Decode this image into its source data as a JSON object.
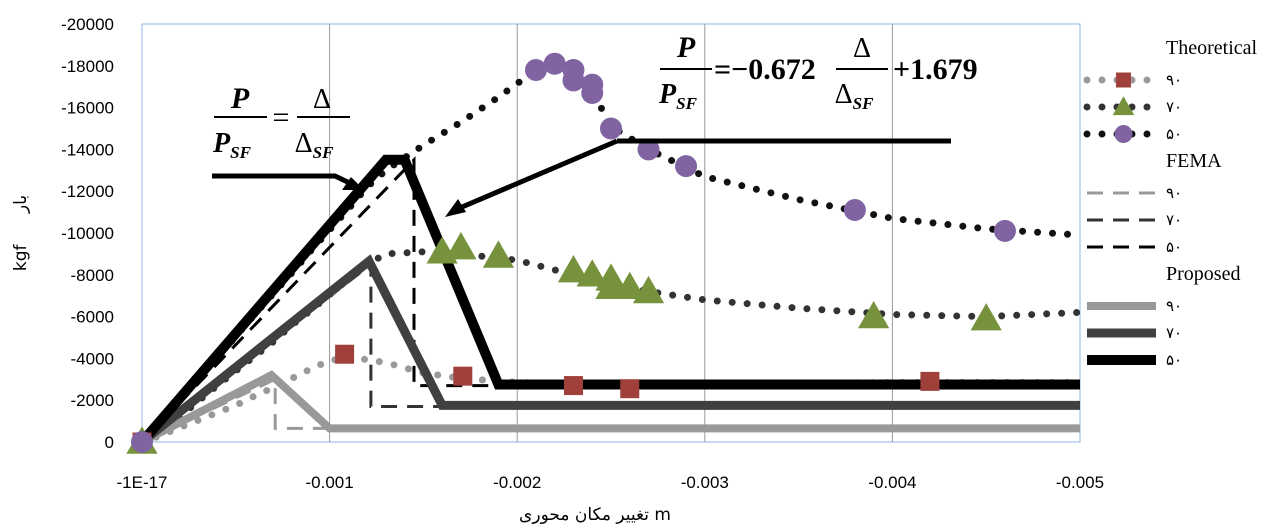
{
  "chart_data": {
    "type": "line",
    "xlabel": "تغییر مکان محوری  m",
    "ylabel": "بار  kgf",
    "ylabel_unit": "kgf",
    "ylabel_word": "بار",
    "xlim": [
      0,
      -0.005
    ],
    "ylim": [
      0,
      -20000
    ],
    "x_ticks": [
      "-1E-17",
      "-0.001",
      "-0.002",
      "-0.003",
      "-0.004",
      "-0.005"
    ],
    "y_ticks": [
      "0",
      "-2000",
      "-4000",
      "-6000",
      "-8000",
      "-10000",
      "-12000",
      "-14000",
      "-16000",
      "-18000",
      "-20000"
    ],
    "grid": "vertical",
    "legend": {
      "groups": [
        {
          "title": "Theoretical",
          "entries": [
            "۹۰",
            "۷۰",
            "۵۰"
          ]
        },
        {
          "title": "FEMA",
          "entries": [
            "۹۰",
            "۷۰",
            "۵۰"
          ]
        },
        {
          "title": "Proposed",
          "entries": [
            "۹۰",
            "۷۰",
            "۵۰"
          ]
        }
      ]
    },
    "equations": {
      "left": {
        "lhs_num": "P",
        "lhs_den_main": "P",
        "lhs_den_sub": "SF",
        "eq": "=",
        "rhs_num": "Δ",
        "rhs_den_main": "Δ",
        "rhs_den_sub": "SF"
      },
      "right": {
        "lhs_num": "P",
        "lhs_den_main": "P",
        "lhs_den_sub": "SF",
        "coef": "=−0.672",
        "rhs_num": "Δ",
        "rhs_den_main": "Δ",
        "rhs_den_sub": "SF",
        "const": "+1.679"
      }
    },
    "series": [
      {
        "name": "۹۰",
        "group": "Theoretical",
        "style": "dotted-square",
        "color": "#999999",
        "marker_color": "#a0403a",
        "points": [
          [
            0,
            0
          ],
          [
            -5e-05,
            -150
          ],
          [
            -0.0001,
            -310
          ],
          [
            -0.0002,
            -690
          ],
          [
            -0.0003,
            -1040
          ],
          [
            -0.0004,
            -1400
          ],
          [
            -0.0005,
            -1750
          ],
          [
            -0.0006,
            -2200
          ],
          [
            -0.0007,
            -2600
          ],
          [
            -0.0008,
            -3050
          ],
          [
            -0.0009,
            -3500
          ],
          [
            -0.001,
            -3900
          ],
          [
            -0.00112,
            -4050
          ],
          [
            -0.0013,
            -3800
          ],
          [
            -0.0015,
            -3300
          ],
          [
            -0.0017,
            -3050
          ],
          [
            -0.002,
            -2850
          ],
          [
            -0.0025,
            -2750
          ],
          [
            -0.003,
            -2750
          ],
          [
            -0.0035,
            -2800
          ],
          [
            -0.004,
            -2850
          ],
          [
            -0.0045,
            -2850
          ],
          [
            -0.005,
            -2850
          ]
        ],
        "markers": [
          [
            0,
            0
          ],
          [
            -0.00108,
            -4200
          ],
          [
            -0.00171,
            -3150
          ],
          [
            -0.0023,
            -2700
          ],
          [
            -0.0026,
            -2550
          ],
          [
            -0.0042,
            -2900
          ]
        ]
      },
      {
        "name": "۷۰",
        "group": "Theoretical",
        "style": "dotted-triangle",
        "color": "#333333",
        "marker_color": "#76923c",
        "points": [
          [
            0,
            0
          ],
          [
            -0.0001,
            -450
          ],
          [
            -0.0002,
            -1200
          ],
          [
            -0.0003,
            -1950
          ],
          [
            -0.0004,
            -2700
          ],
          [
            -0.0005,
            -3400
          ],
          [
            -0.0006,
            -4100
          ],
          [
            -0.0007,
            -4800
          ],
          [
            -0.0008,
            -5600
          ],
          [
            -0.0009,
            -6300
          ],
          [
            -0.001,
            -7050
          ],
          [
            -0.0011,
            -7800
          ],
          [
            -0.0012,
            -8500
          ],
          [
            -0.0013,
            -9000
          ],
          [
            -0.0015,
            -9100
          ],
          [
            -0.0017,
            -9000
          ],
          [
            -0.002,
            -8700
          ],
          [
            -0.0023,
            -8000
          ],
          [
            -0.0027,
            -7200
          ],
          [
            -0.003,
            -6800
          ],
          [
            -0.0035,
            -6400
          ],
          [
            -0.004,
            -6100
          ],
          [
            -0.0045,
            -6000
          ],
          [
            -0.005,
            -6200
          ]
        ],
        "markers": [
          [
            0,
            0
          ],
          [
            -0.0016,
            -9100
          ],
          [
            -0.0017,
            -9300
          ],
          [
            -0.0019,
            -8900
          ],
          [
            -0.0023,
            -8200
          ],
          [
            -0.0024,
            -8000
          ],
          [
            -0.0025,
            -7800
          ],
          [
            -0.0025,
            -7400
          ],
          [
            -0.0026,
            -7400
          ],
          [
            -0.0027,
            -7200
          ],
          [
            -0.0039,
            -6000
          ],
          [
            -0.0045,
            -5900
          ]
        ]
      },
      {
        "name": "۵۰",
        "group": "Theoretical",
        "style": "dotted-circle",
        "color": "#111111",
        "marker_color": "#8064a2",
        "points": [
          [
            0,
            0
          ],
          [
            -0.0001,
            -1000
          ],
          [
            -0.0002,
            -2050
          ],
          [
            -0.0003,
            -3000
          ],
          [
            -0.0004,
            -4050
          ],
          [
            -0.0005,
            -5050
          ],
          [
            -0.0006,
            -6100
          ],
          [
            -0.0007,
            -7100
          ],
          [
            -0.0008,
            -8100
          ],
          [
            -0.0009,
            -9150
          ],
          [
            -0.001,
            -10150
          ],
          [
            -0.0011,
            -11150
          ],
          [
            -0.0012,
            -12200
          ],
          [
            -0.0013,
            -13000
          ],
          [
            -0.0015,
            -14200
          ],
          [
            -0.0017,
            -15300
          ],
          [
            -0.0019,
            -16500
          ],
          [
            -0.0021,
            -17800
          ],
          [
            -0.0022,
            -18000
          ],
          [
            -0.0024,
            -16800
          ],
          [
            -0.0025,
            -15100
          ],
          [
            -0.0027,
            -14000
          ],
          [
            -0.003,
            -12700
          ],
          [
            -0.0035,
            -11600
          ],
          [
            -0.004,
            -10700
          ],
          [
            -0.0045,
            -10200
          ],
          [
            -0.005,
            -9900
          ]
        ],
        "markers": [
          [
            0,
            0
          ],
          [
            -0.0021,
            -17800
          ],
          [
            -0.0022,
            -18100
          ],
          [
            -0.0023,
            -17800
          ],
          [
            -0.0023,
            -17300
          ],
          [
            -0.0024,
            -17100
          ],
          [
            -0.0024,
            -16700
          ],
          [
            -0.0025,
            -15000
          ],
          [
            -0.0027,
            -14000
          ],
          [
            -0.0029,
            -13200
          ],
          [
            -0.0038,
            -11100
          ],
          [
            -0.0046,
            -10100
          ]
        ]
      },
      {
        "name": "۹۰",
        "group": "FEMA",
        "style": "dashed",
        "color": "#999999",
        "points": [
          [
            0,
            0
          ],
          [
            -0.00071,
            -3000
          ],
          [
            -0.00071,
            -650
          ],
          [
            -0.005,
            -650
          ]
        ]
      },
      {
        "name": "۷۰",
        "group": "FEMA",
        "style": "dashed",
        "color": "#333333",
        "points": [
          [
            0,
            0
          ],
          [
            -0.00122,
            -8500
          ],
          [
            -0.00122,
            -1700
          ],
          [
            -0.005,
            -1700
          ]
        ]
      },
      {
        "name": "۵۰",
        "group": "FEMA",
        "style": "dashed",
        "color": "#000000",
        "points": [
          [
            0,
            0
          ],
          [
            -0.00145,
            -13500
          ],
          [
            -0.00145,
            -2700
          ],
          [
            -0.005,
            -2700
          ]
        ]
      },
      {
        "name": "۹۰",
        "group": "Proposed",
        "style": "solid",
        "color": "#999999",
        "points": [
          [
            0,
            0
          ],
          [
            -0.00069,
            -3200
          ],
          [
            -0.001,
            -650
          ],
          [
            -0.005,
            -650
          ]
        ]
      },
      {
        "name": "۷۰",
        "group": "Proposed",
        "style": "solid",
        "color": "#404040",
        "points": [
          [
            0,
            0
          ],
          [
            -0.00121,
            -8650
          ],
          [
            -0.0016,
            -1750
          ],
          [
            -0.005,
            -1750
          ]
        ]
      },
      {
        "name": "۵۰",
        "group": "Proposed",
        "style": "solid",
        "color": "#000000",
        "points": [
          [
            0,
            0
          ],
          [
            -0.0013,
            -13500
          ],
          [
            -0.0014,
            -13500
          ],
          [
            -0.0019,
            -2750
          ],
          [
            -0.005,
            -2750
          ]
        ]
      }
    ]
  }
}
